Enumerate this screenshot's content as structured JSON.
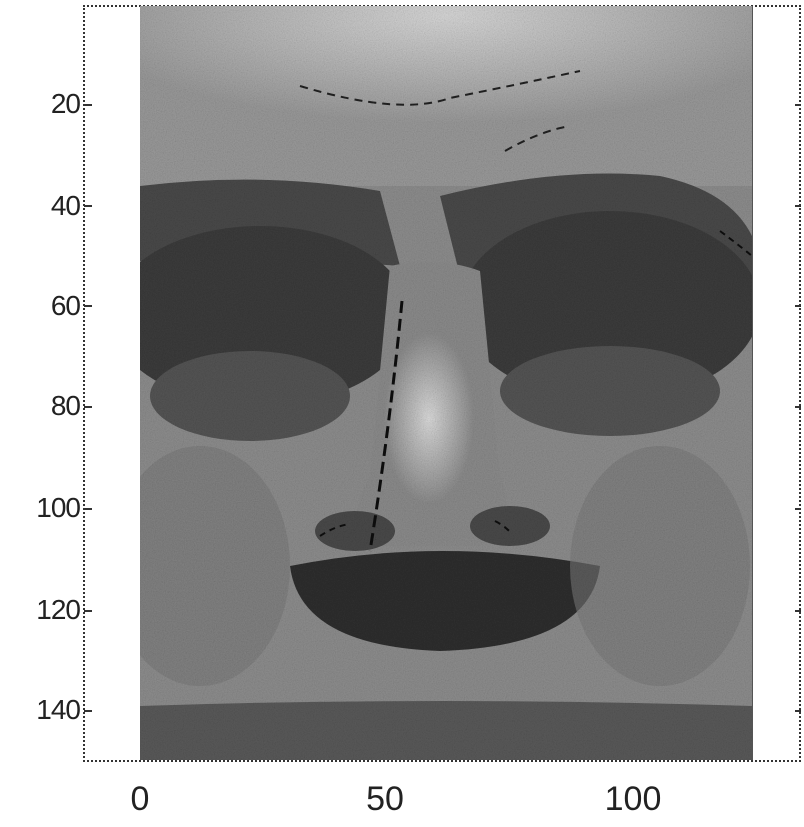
{
  "figure": {
    "y_ticks": [
      "20",
      "40",
      "60",
      "80",
      "100",
      "120",
      "140"
    ],
    "x_ticks": [
      "0",
      "50",
      "100"
    ],
    "image_description_icon": "grayscale-face-photo-icon"
  }
}
